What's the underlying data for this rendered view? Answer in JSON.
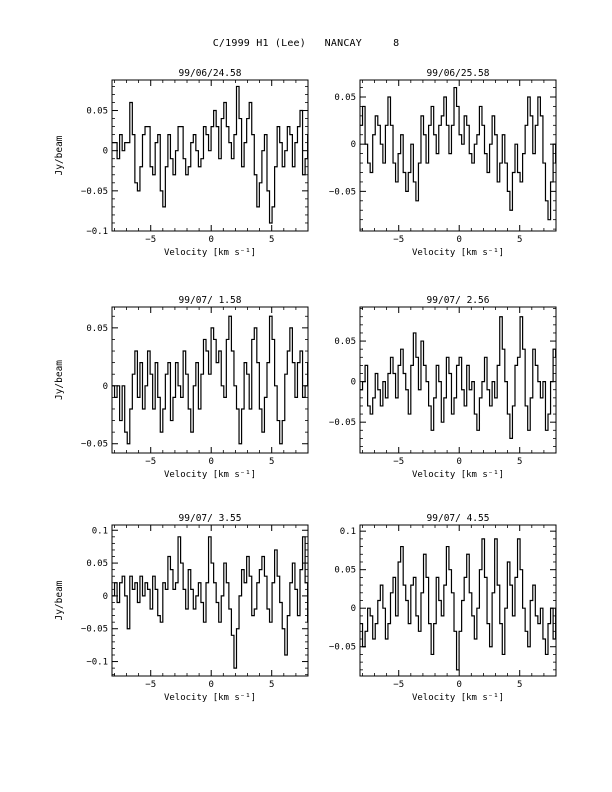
{
  "page": {
    "title": "C/1999 H1 (Lee)   NANCAY     8"
  },
  "chart_data": [
    {
      "type": "line",
      "title": "99/06/24.58",
      "xlabel": "Velocity [km s⁻¹]",
      "ylabel": "Jy/beam",
      "xlim": [
        -8.2,
        8.0
      ],
      "ylim": [
        -0.1,
        0.088
      ],
      "xticks": [
        -5,
        0,
        5
      ],
      "yticks": [
        0.05,
        0,
        -0.05,
        -0.1
      ],
      "ytick_labels": [
        "0.05",
        "0",
        "−0.05",
        "−0.1"
      ],
      "x_start": -8.2,
      "x_step": 0.21,
      "values": [
        0.01,
        0.01,
        -0.01,
        0.02,
        0.0,
        0.01,
        0.01,
        0.06,
        0.02,
        -0.04,
        -0.05,
        -0.02,
        0.02,
        0.03,
        0.03,
        -0.02,
        -0.03,
        0.01,
        0.02,
        -0.05,
        -0.07,
        -0.02,
        0.02,
        -0.01,
        -0.03,
        0.0,
        0.03,
        0.03,
        -0.01,
        -0.03,
        -0.02,
        0.01,
        0.02,
        0.0,
        -0.02,
        -0.01,
        0.03,
        0.02,
        0.0,
        0.03,
        0.05,
        0.03,
        -0.01,
        0.04,
        0.06,
        0.03,
        0.01,
        -0.01,
        0.02,
        0.08,
        0.04,
        -0.02,
        0.01,
        0.04,
        0.06,
        0.02,
        -0.03,
        -0.07,
        -0.04,
        0.0,
        0.02,
        -0.05,
        -0.09,
        -0.07,
        -0.02,
        0.03,
        0.01,
        -0.02,
        0.0,
        0.03,
        0.02,
        -0.02,
        0.01,
        0.03,
        0.05,
        -0.03,
        -0.01,
        0.02
      ]
    },
    {
      "type": "line",
      "title": "99/06/25.58",
      "xlabel": "Velocity [km s⁻¹]",
      "ylabel": "",
      "xlim": [
        -8.2,
        8.0
      ],
      "ylim": [
        -0.092,
        0.068
      ],
      "xticks": [
        -5,
        0,
        5
      ],
      "yticks": [
        0.05,
        0,
        -0.05
      ],
      "ytick_labels": [
        "0.05",
        "0",
        "−0.05"
      ],
      "x_start": -8.2,
      "x_step": 0.21,
      "values": [
        0.02,
        0.04,
        0.0,
        -0.02,
        -0.03,
        0.01,
        0.03,
        0.02,
        0.0,
        -0.02,
        0.02,
        0.05,
        0.02,
        -0.02,
        -0.04,
        -0.01,
        0.01,
        -0.03,
        -0.05,
        -0.03,
        0.0,
        -0.04,
        -0.06,
        -0.02,
        0.03,
        0.01,
        -0.02,
        0.02,
        0.04,
        0.01,
        -0.01,
        0.02,
        0.03,
        0.05,
        0.02,
        -0.01,
        0.02,
        0.06,
        0.04,
        0.01,
        0.0,
        0.03,
        0.02,
        -0.01,
        -0.02,
        0.0,
        0.01,
        0.04,
        0.02,
        -0.01,
        -0.03,
        0.0,
        0.03,
        0.01,
        -0.04,
        -0.02,
        0.01,
        -0.02,
        -0.05,
        -0.07,
        -0.03,
        0.0,
        -0.03,
        -0.04,
        -0.01,
        0.02,
        0.05,
        0.03,
        -0.01,
        0.02,
        0.05,
        0.03,
        -0.02,
        -0.06,
        -0.08,
        -0.04,
        0.0,
        -0.02
      ]
    },
    {
      "type": "line",
      "title": "99/07/ 1.58",
      "xlabel": "Velocity [km s⁻¹]",
      "ylabel": "Jy/beam",
      "xlim": [
        -8.2,
        8.0
      ],
      "ylim": [
        -0.058,
        0.068
      ],
      "xticks": [
        -5,
        0,
        5
      ],
      "yticks": [
        0.05,
        0,
        -0.05
      ],
      "ytick_labels": [
        "0.05",
        "0",
        "−0.05"
      ],
      "x_start": -8.2,
      "x_step": 0.21,
      "values": [
        0.0,
        -0.01,
        0.0,
        -0.03,
        0.0,
        -0.04,
        -0.05,
        -0.02,
        0.01,
        0.03,
        -0.01,
        0.02,
        -0.02,
        0.0,
        0.03,
        0.01,
        -0.02,
        0.02,
        -0.01,
        -0.04,
        -0.02,
        0.01,
        0.02,
        -0.03,
        -0.01,
        0.02,
        0.0,
        -0.01,
        0.03,
        0.01,
        -0.02,
        -0.04,
        0.0,
        0.02,
        -0.02,
        0.01,
        0.04,
        0.03,
        0.01,
        0.05,
        0.04,
        0.02,
        0.03,
        0.0,
        -0.01,
        0.04,
        0.06,
        0.03,
        0.0,
        -0.02,
        -0.05,
        -0.02,
        0.02,
        0.01,
        -0.02,
        0.04,
        0.05,
        0.02,
        -0.02,
        -0.04,
        -0.01,
        0.02,
        0.06,
        0.04,
        0.0,
        -0.03,
        -0.05,
        -0.03,
        0.01,
        0.03,
        0.05,
        0.02,
        -0.01,
        0.02,
        0.03,
        -0.01,
        0.0,
        0.02
      ]
    },
    {
      "type": "line",
      "title": "99/07/ 2.56",
      "xlabel": "Velocity [km s⁻¹]",
      "ylabel": "",
      "xlim": [
        -8.2,
        8.0
      ],
      "ylim": [
        -0.088,
        0.092
      ],
      "xticks": [
        -5,
        0,
        5
      ],
      "yticks": [
        0.05,
        0,
        -0.05
      ],
      "ytick_labels": [
        "0.05",
        "0",
        "−0.05"
      ],
      "x_start": -8.2,
      "x_step": 0.21,
      "values": [
        -0.01,
        0.0,
        0.02,
        -0.03,
        -0.04,
        -0.02,
        0.01,
        -0.01,
        -0.03,
        0.0,
        -0.02,
        0.01,
        0.03,
        0.01,
        -0.02,
        0.02,
        0.04,
        0.01,
        -0.01,
        -0.04,
        0.02,
        0.06,
        0.03,
        -0.01,
        0.05,
        0.02,
        0.0,
        -0.03,
        -0.06,
        -0.02,
        0.02,
        0.0,
        -0.05,
        -0.02,
        0.03,
        0.01,
        -0.04,
        -0.02,
        0.02,
        0.03,
        -0.01,
        -0.03,
        0.02,
        -0.01,
        0.0,
        -0.04,
        -0.06,
        -0.02,
        0.0,
        0.03,
        -0.01,
        -0.03,
        0.0,
        -0.02,
        0.02,
        0.08,
        0.04,
        0.0,
        -0.04,
        -0.07,
        -0.03,
        0.02,
        0.03,
        0.08,
        0.04,
        -0.03,
        -0.06,
        -0.02,
        0.04,
        0.02,
        0.0,
        -0.02,
        0.0,
        -0.06,
        -0.04,
        0.0,
        0.04,
        0.03
      ]
    },
    {
      "type": "line",
      "title": "99/07/ 3.55",
      "xlabel": "Velocity [km s⁻¹]",
      "ylabel": "Jy/beam",
      "xlim": [
        -8.2,
        8.0
      ],
      "ylim": [
        -0.122,
        0.108
      ],
      "xticks": [
        -5,
        0,
        5
      ],
      "yticks": [
        0.1,
        0.05,
        0,
        -0.05,
        -0.1
      ],
      "ytick_labels": [
        "0.1",
        "0.05",
        "0",
        "−0.05",
        "−0.1"
      ],
      "x_start": -8.2,
      "x_step": 0.21,
      "values": [
        0.0,
        0.02,
        -0.01,
        0.02,
        0.03,
        0.0,
        -0.05,
        0.03,
        0.01,
        0.02,
        -0.01,
        0.03,
        0.0,
        0.02,
        0.01,
        -0.02,
        0.03,
        0.01,
        -0.03,
        -0.04,
        0.02,
        0.01,
        0.06,
        0.04,
        0.01,
        0.02,
        0.09,
        0.05,
        0.01,
        -0.02,
        0.04,
        0.01,
        -0.02,
        0.0,
        0.02,
        -0.01,
        -0.04,
        0.02,
        0.09,
        0.05,
        0.02,
        -0.01,
        -0.04,
        0.0,
        0.05,
        0.02,
        -0.02,
        -0.06,
        -0.11,
        -0.05,
        0.0,
        0.04,
        0.02,
        0.06,
        0.03,
        -0.03,
        -0.02,
        0.02,
        0.04,
        0.06,
        0.03,
        -0.02,
        -0.04,
        0.02,
        0.07,
        0.03,
        -0.01,
        -0.05,
        -0.09,
        -0.03,
        0.02,
        0.05,
        0.01,
        -0.03,
        0.04,
        0.09,
        0.02,
        -0.04
      ]
    },
    {
      "type": "line",
      "title": "99/07/ 4.55",
      "xlabel": "Velocity [km s⁻¹]",
      "ylabel": "",
      "xlim": [
        -8.2,
        8.0
      ],
      "ylim": [
        -0.088,
        0.108
      ],
      "xticks": [
        -5,
        0,
        5
      ],
      "yticks": [
        0.1,
        0.05,
        0,
        -0.05
      ],
      "ytick_labels": [
        "0.1",
        "0.05",
        "0",
        "−0.05"
      ],
      "x_start": -8.2,
      "x_step": 0.21,
      "values": [
        -0.02,
        -0.05,
        -0.03,
        0.0,
        -0.01,
        -0.04,
        -0.02,
        0.01,
        0.03,
        0.0,
        -0.04,
        -0.02,
        0.02,
        0.04,
        -0.01,
        0.06,
        0.08,
        0.03,
        0.01,
        -0.02,
        0.03,
        0.04,
        -0.01,
        -0.03,
        0.02,
        0.07,
        0.04,
        -0.02,
        -0.06,
        -0.02,
        0.04,
        0.01,
        -0.01,
        0.03,
        0.08,
        0.05,
        0.02,
        -0.03,
        -0.08,
        -0.03,
        0.01,
        0.04,
        0.07,
        0.02,
        -0.01,
        -0.04,
        0.0,
        0.05,
        0.09,
        0.04,
        -0.02,
        -0.05,
        0.02,
        0.09,
        0.03,
        -0.02,
        -0.06,
        0.0,
        0.06,
        0.03,
        -0.01,
        0.04,
        0.09,
        0.05,
        0.0,
        -0.03,
        -0.05,
        0.01,
        0.03,
        -0.01,
        -0.02,
        0.0,
        -0.04,
        -0.06,
        -0.02,
        0.0,
        -0.04,
        0.0
      ]
    }
  ]
}
